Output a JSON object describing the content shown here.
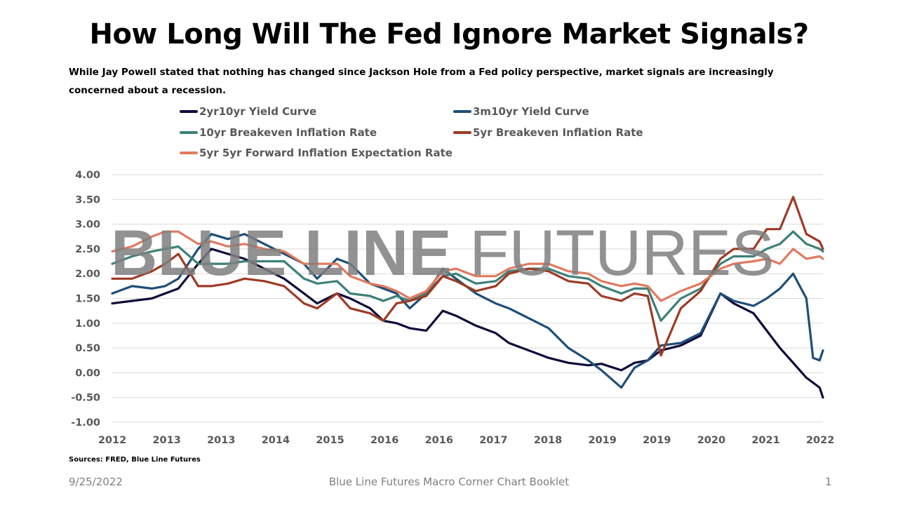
{
  "title": "How Long Will The Fed Ignore Market Signals?",
  "subtitle": "While Jay Powell stated that nothing has changed since Jackson Hole from a Fed policy perspective, market signals are increasingly concerned about a recession.",
  "watermark": {
    "bold": "BLUE LINE",
    "light": " FUTURES"
  },
  "sources": "Sources: FRED, Blue Line Futures",
  "footer": {
    "date": "9/25/2022",
    "center": "Blue Line Futures Macro Corner Chart Booklet",
    "page": "1"
  },
  "chart_data": {
    "type": "line",
    "title": "",
    "xlabel": "",
    "ylabel": "",
    "x_tick_labels": [
      "2012",
      "2013",
      "2013",
      "2014",
      "2015",
      "2016",
      "2016",
      "2017",
      "2018",
      "2019",
      "2019",
      "2020",
      "2021",
      "2022"
    ],
    "xlim": [
      2012.0,
      2022.75
    ],
    "ylim": [
      -1.0,
      4.0
    ],
    "y_ticks": [
      "-1.00",
      "-0.50",
      "0.00",
      "0.50",
      "1.00",
      "1.50",
      "2.00",
      "2.50",
      "3.00",
      "3.50",
      "4.00"
    ],
    "grid": "horizontal",
    "legend_position": "top",
    "series": [
      {
        "name": "2yr10yr Yield Curve",
        "color": "#0d0a3a",
        "points": [
          [
            2012.0,
            1.4
          ],
          [
            2012.3,
            1.45
          ],
          [
            2012.6,
            1.5
          ],
          [
            2012.8,
            1.6
          ],
          [
            2013.0,
            1.7
          ],
          [
            2013.3,
            2.2
          ],
          [
            2013.5,
            2.5
          ],
          [
            2013.75,
            2.4
          ],
          [
            2014.0,
            2.3
          ],
          [
            2014.3,
            2.1
          ],
          [
            2014.6,
            1.9
          ],
          [
            2014.9,
            1.6
          ],
          [
            2015.1,
            1.4
          ],
          [
            2015.4,
            1.6
          ],
          [
            2015.6,
            1.5
          ],
          [
            2015.9,
            1.3
          ],
          [
            2016.1,
            1.05
          ],
          [
            2016.3,
            1.0
          ],
          [
            2016.5,
            0.9
          ],
          [
            2016.75,
            0.85
          ],
          [
            2017.0,
            1.25
          ],
          [
            2017.2,
            1.15
          ],
          [
            2017.5,
            0.95
          ],
          [
            2017.8,
            0.8
          ],
          [
            2018.0,
            0.6
          ],
          [
            2018.3,
            0.45
          ],
          [
            2018.6,
            0.3
          ],
          [
            2018.9,
            0.2
          ],
          [
            2019.2,
            0.15
          ],
          [
            2019.4,
            0.18
          ],
          [
            2019.7,
            0.05
          ],
          [
            2019.9,
            0.2
          ],
          [
            2020.1,
            0.25
          ],
          [
            2020.3,
            0.45
          ],
          [
            2020.6,
            0.55
          ],
          [
            2020.9,
            0.75
          ],
          [
            2021.2,
            1.6
          ],
          [
            2021.4,
            1.4
          ],
          [
            2021.7,
            1.2
          ],
          [
            2021.9,
            0.85
          ],
          [
            2022.1,
            0.5
          ],
          [
            2022.3,
            0.2
          ],
          [
            2022.5,
            -0.1
          ],
          [
            2022.7,
            -0.3
          ],
          [
            2022.75,
            -0.5
          ]
        ]
      },
      {
        "name": "3m10yr Yield Curve",
        "color": "#1f4e79",
        "points": [
          [
            2012.0,
            1.6
          ],
          [
            2012.3,
            1.75
          ],
          [
            2012.6,
            1.7
          ],
          [
            2012.8,
            1.75
          ],
          [
            2013.0,
            1.9
          ],
          [
            2013.3,
            2.5
          ],
          [
            2013.5,
            2.8
          ],
          [
            2013.75,
            2.7
          ],
          [
            2014.0,
            2.8
          ],
          [
            2014.3,
            2.6
          ],
          [
            2014.6,
            2.4
          ],
          [
            2014.9,
            2.2
          ],
          [
            2015.1,
            1.9
          ],
          [
            2015.4,
            2.3
          ],
          [
            2015.6,
            2.2
          ],
          [
            2015.9,
            1.8
          ],
          [
            2016.1,
            1.7
          ],
          [
            2016.3,
            1.6
          ],
          [
            2016.5,
            1.3
          ],
          [
            2016.75,
            1.6
          ],
          [
            2017.0,
            2.1
          ],
          [
            2017.2,
            1.9
          ],
          [
            2017.5,
            1.6
          ],
          [
            2017.8,
            1.4
          ],
          [
            2018.0,
            1.3
          ],
          [
            2018.3,
            1.1
          ],
          [
            2018.6,
            0.9
          ],
          [
            2018.9,
            0.5
          ],
          [
            2019.2,
            0.25
          ],
          [
            2019.4,
            0.05
          ],
          [
            2019.7,
            -0.3
          ],
          [
            2019.9,
            0.1
          ],
          [
            2020.1,
            0.25
          ],
          [
            2020.3,
            0.55
          ],
          [
            2020.6,
            0.6
          ],
          [
            2020.9,
            0.8
          ],
          [
            2021.2,
            1.6
          ],
          [
            2021.4,
            1.45
          ],
          [
            2021.7,
            1.35
          ],
          [
            2021.9,
            1.5
          ],
          [
            2022.1,
            1.7
          ],
          [
            2022.3,
            2.0
          ],
          [
            2022.5,
            1.5
          ],
          [
            2022.6,
            0.3
          ],
          [
            2022.7,
            0.25
          ],
          [
            2022.75,
            0.45
          ]
        ]
      },
      {
        "name": "10yr Breakeven Inflation Rate",
        "color": "#3d8078",
        "points": [
          [
            2012.0,
            2.2
          ],
          [
            2012.3,
            2.35
          ],
          [
            2012.6,
            2.45
          ],
          [
            2012.8,
            2.5
          ],
          [
            2013.0,
            2.55
          ],
          [
            2013.3,
            2.2
          ],
          [
            2013.5,
            2.2
          ],
          [
            2013.75,
            2.2
          ],
          [
            2014.0,
            2.25
          ],
          [
            2014.3,
            2.25
          ],
          [
            2014.6,
            2.25
          ],
          [
            2014.9,
            1.9
          ],
          [
            2015.1,
            1.8
          ],
          [
            2015.4,
            1.85
          ],
          [
            2015.6,
            1.6
          ],
          [
            2015.9,
            1.55
          ],
          [
            2016.1,
            1.45
          ],
          [
            2016.3,
            1.55
          ],
          [
            2016.5,
            1.45
          ],
          [
            2016.75,
            1.6
          ],
          [
            2017.0,
            1.95
          ],
          [
            2017.2,
            2.0
          ],
          [
            2017.5,
            1.8
          ],
          [
            2017.8,
            1.85
          ],
          [
            2018.0,
            2.05
          ],
          [
            2018.3,
            2.1
          ],
          [
            2018.6,
            2.1
          ],
          [
            2018.9,
            1.95
          ],
          [
            2019.2,
            1.9
          ],
          [
            2019.4,
            1.75
          ],
          [
            2019.7,
            1.6
          ],
          [
            2019.9,
            1.7
          ],
          [
            2020.1,
            1.7
          ],
          [
            2020.3,
            1.05
          ],
          [
            2020.6,
            1.5
          ],
          [
            2020.9,
            1.7
          ],
          [
            2021.2,
            2.2
          ],
          [
            2021.4,
            2.35
          ],
          [
            2021.7,
            2.35
          ],
          [
            2021.9,
            2.5
          ],
          [
            2022.1,
            2.6
          ],
          [
            2022.3,
            2.85
          ],
          [
            2022.5,
            2.6
          ],
          [
            2022.7,
            2.5
          ],
          [
            2022.75,
            2.45
          ]
        ]
      },
      {
        "name": "5yr Breakeven Inflation Rate",
        "color": "#9e3a24",
        "points": [
          [
            2012.0,
            1.9
          ],
          [
            2012.3,
            1.9
          ],
          [
            2012.6,
            2.05
          ],
          [
            2012.8,
            2.2
          ],
          [
            2013.0,
            2.4
          ],
          [
            2013.3,
            1.75
          ],
          [
            2013.5,
            1.75
          ],
          [
            2013.75,
            1.8
          ],
          [
            2014.0,
            1.9
          ],
          [
            2014.3,
            1.85
          ],
          [
            2014.6,
            1.75
          ],
          [
            2014.9,
            1.4
          ],
          [
            2015.1,
            1.3
          ],
          [
            2015.4,
            1.6
          ],
          [
            2015.6,
            1.3
          ],
          [
            2015.9,
            1.2
          ],
          [
            2016.1,
            1.05
          ],
          [
            2016.3,
            1.4
          ],
          [
            2016.5,
            1.45
          ],
          [
            2016.75,
            1.55
          ],
          [
            2017.0,
            1.95
          ],
          [
            2017.2,
            1.85
          ],
          [
            2017.5,
            1.65
          ],
          [
            2017.8,
            1.75
          ],
          [
            2018.0,
            2.0
          ],
          [
            2018.3,
            2.1
          ],
          [
            2018.6,
            2.05
          ],
          [
            2018.9,
            1.85
          ],
          [
            2019.2,
            1.8
          ],
          [
            2019.4,
            1.55
          ],
          [
            2019.7,
            1.45
          ],
          [
            2019.9,
            1.6
          ],
          [
            2020.1,
            1.55
          ],
          [
            2020.3,
            0.35
          ],
          [
            2020.6,
            1.3
          ],
          [
            2020.9,
            1.65
          ],
          [
            2021.2,
            2.3
          ],
          [
            2021.4,
            2.5
          ],
          [
            2021.7,
            2.5
          ],
          [
            2021.9,
            2.9
          ],
          [
            2022.1,
            2.9
          ],
          [
            2022.3,
            3.55
          ],
          [
            2022.5,
            2.8
          ],
          [
            2022.7,
            2.65
          ],
          [
            2022.75,
            2.5
          ]
        ]
      },
      {
        "name": "5yr 5yr Forward Inflation Expectation Rate",
        "color": "#e07a5f",
        "points": [
          [
            2012.0,
            2.45
          ],
          [
            2012.3,
            2.55
          ],
          [
            2012.6,
            2.75
          ],
          [
            2012.8,
            2.85
          ],
          [
            2013.0,
            2.85
          ],
          [
            2013.3,
            2.6
          ],
          [
            2013.5,
            2.65
          ],
          [
            2013.75,
            2.55
          ],
          [
            2014.0,
            2.6
          ],
          [
            2014.3,
            2.5
          ],
          [
            2014.6,
            2.45
          ],
          [
            2014.9,
            2.2
          ],
          [
            2015.1,
            2.2
          ],
          [
            2015.4,
            2.2
          ],
          [
            2015.6,
            1.95
          ],
          [
            2015.9,
            1.8
          ],
          [
            2016.1,
            1.75
          ],
          [
            2016.3,
            1.65
          ],
          [
            2016.5,
            1.5
          ],
          [
            2016.75,
            1.65
          ],
          [
            2017.0,
            2.05
          ],
          [
            2017.2,
            2.1
          ],
          [
            2017.5,
            1.95
          ],
          [
            2017.8,
            1.95
          ],
          [
            2018.0,
            2.1
          ],
          [
            2018.3,
            2.2
          ],
          [
            2018.6,
            2.2
          ],
          [
            2018.9,
            2.05
          ],
          [
            2019.2,
            2.0
          ],
          [
            2019.4,
            1.85
          ],
          [
            2019.7,
            1.75
          ],
          [
            2019.9,
            1.8
          ],
          [
            2020.1,
            1.75
          ],
          [
            2020.3,
            1.45
          ],
          [
            2020.6,
            1.65
          ],
          [
            2020.9,
            1.8
          ],
          [
            2021.2,
            2.1
          ],
          [
            2021.4,
            2.2
          ],
          [
            2021.7,
            2.25
          ],
          [
            2021.9,
            2.3
          ],
          [
            2022.1,
            2.2
          ],
          [
            2022.3,
            2.5
          ],
          [
            2022.5,
            2.3
          ],
          [
            2022.7,
            2.35
          ],
          [
            2022.75,
            2.3
          ]
        ]
      }
    ]
  }
}
